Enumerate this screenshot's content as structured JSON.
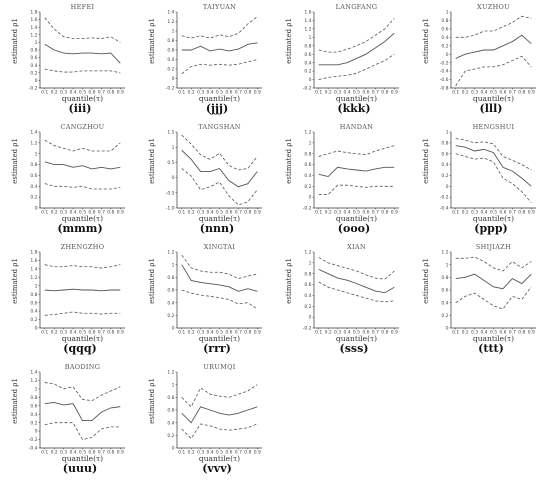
{
  "colors": {
    "axis": "#333333",
    "estimate": "#555555",
    "band": "#555555"
  },
  "chart_data": [
    {
      "type": "line",
      "title": "HEFEI",
      "label": "(iii)",
      "xlabel": "quantile(τ)",
      "ylabel": "estimated ρ1",
      "x": [
        0.1,
        0.2,
        0.3,
        0.4,
        0.5,
        0.6,
        0.7,
        0.8,
        0.9
      ],
      "ylim": [
        -0.2,
        1.8
      ],
      "yticks": [
        -0.2,
        0,
        0.2,
        0.4,
        0.6,
        0.8,
        1,
        1.2,
        1.4,
        1.6,
        1.8
      ],
      "ytick_labels": [
        "-0.2",
        "0",
        "0.2",
        "0.4",
        "0.6",
        "0.8",
        "1",
        "1.2",
        "1.4",
        "1.6",
        "1.8"
      ],
      "series": [
        {
          "values": [
            0.95,
            0.8,
            0.72,
            0.7,
            0.72,
            0.72,
            0.7,
            0.72,
            0.45
          ]
        },
        {
          "values": [
            1.65,
            1.35,
            1.15,
            1.1,
            1.1,
            1.12,
            1.1,
            1.15,
            1.0
          ]
        },
        {
          "values": [
            0.3,
            0.25,
            0.22,
            0.22,
            0.25,
            0.25,
            0.25,
            0.25,
            0.2
          ]
        }
      ]
    },
    {
      "type": "line",
      "title": "TAIYUAN",
      "label": "(jjj)",
      "xlabel": "quantile(τ)",
      "ylabel": "estimated ρ1",
      "x": [
        0.1,
        0.2,
        0.3,
        0.4,
        0.5,
        0.6,
        0.7,
        0.8,
        0.9
      ],
      "ylim": [
        -0.2,
        1.4
      ],
      "yticks": [
        -0.2,
        0,
        0.2,
        0.4,
        0.6,
        0.8,
        1,
        1.2,
        1.4
      ],
      "ytick_labels": [
        "-0.2",
        "0",
        "0.2",
        "0.4",
        "0.6",
        "0.8",
        "1",
        "1.2",
        "1.4"
      ],
      "series": [
        {
          "values": [
            0.6,
            0.6,
            0.68,
            0.58,
            0.62,
            0.58,
            0.62,
            0.72,
            0.75
          ]
        },
        {
          "values": [
            0.9,
            0.85,
            0.9,
            0.85,
            0.92,
            0.88,
            0.95,
            1.15,
            1.3
          ]
        },
        {
          "values": [
            0.1,
            0.25,
            0.3,
            0.28,
            0.3,
            0.28,
            0.3,
            0.35,
            0.4
          ]
        }
      ]
    },
    {
      "type": "line",
      "title": "LANGFANG",
      "label": "(kkk)",
      "xlabel": "quantile(τ)",
      "ylabel": "estimated ρ1",
      "x": [
        0.1,
        0.2,
        0.3,
        0.4,
        0.5,
        0.6,
        0.7,
        0.8,
        0.9
      ],
      "ylim": [
        -0.2,
        1.6
      ],
      "yticks": [
        -0.2,
        0,
        0.2,
        0.4,
        0.6,
        0.8,
        1,
        1.2,
        1.4,
        1.6
      ],
      "ytick_labels": [
        "-0.2",
        "0",
        "0.2",
        "0.4",
        "0.6",
        "0.8",
        "1",
        "1.2",
        "1.4",
        "1.6"
      ],
      "series": [
        {
          "values": [
            0.35,
            0.35,
            0.35,
            0.4,
            0.5,
            0.6,
            0.75,
            0.9,
            1.1
          ]
        },
        {
          "values": [
            0.7,
            0.65,
            0.65,
            0.72,
            0.8,
            0.9,
            1.05,
            1.2,
            1.45
          ]
        },
        {
          "values": [
            0.0,
            0.05,
            0.08,
            0.1,
            0.15,
            0.25,
            0.35,
            0.45,
            0.6
          ]
        }
      ]
    },
    {
      "type": "line",
      "title": "XUZHOU",
      "label": "(lll)",
      "xlabel": "quantile(τ)",
      "ylabel": "estimated ρ1",
      "x": [
        0.1,
        0.2,
        0.3,
        0.4,
        0.5,
        0.6,
        0.7,
        0.8,
        0.9
      ],
      "ylim": [
        -0.8,
        1
      ],
      "yticks": [
        -0.8,
        -0.6,
        -0.4,
        -0.2,
        0,
        0.2,
        0.4,
        0.6,
        0.8,
        1
      ],
      "ytick_labels": [
        "-0.8",
        "-0.6",
        "-0.4",
        "-0.2",
        "0",
        "0.2",
        "0.4",
        "0.6",
        "0.8",
        "1"
      ],
      "series": [
        {
          "values": [
            -0.1,
            0.0,
            0.05,
            0.1,
            0.1,
            0.2,
            0.3,
            0.45,
            0.25
          ]
        },
        {
          "values": [
            0.4,
            0.4,
            0.45,
            0.55,
            0.55,
            0.65,
            0.75,
            0.9,
            0.85
          ]
        },
        {
          "values": [
            -0.75,
            -0.4,
            -0.35,
            -0.3,
            -0.3,
            -0.25,
            -0.15,
            -0.05,
            -0.3
          ]
        }
      ]
    },
    {
      "type": "line",
      "title": "CANGZHOU",
      "label": "(mmm)",
      "xlabel": "quantile(τ)",
      "ylabel": "estimated ρ1",
      "x": [
        0.1,
        0.2,
        0.3,
        0.4,
        0.5,
        0.6,
        0.7,
        0.8,
        0.9
      ],
      "ylim": [
        0,
        1.4
      ],
      "yticks": [
        0,
        0.2,
        0.4,
        0.6,
        0.8,
        1,
        1.2,
        1.4
      ],
      "ytick_labels": [
        "0",
        "0.2",
        "0.4",
        "0.6",
        "0.8",
        "1",
        "1.2",
        "1.4"
      ],
      "series": [
        {
          "values": [
            0.85,
            0.8,
            0.8,
            0.75,
            0.78,
            0.72,
            0.75,
            0.72,
            0.75
          ]
        },
        {
          "values": [
            1.25,
            1.15,
            1.1,
            1.05,
            1.1,
            1.05,
            1.05,
            1.05,
            1.2
          ]
        },
        {
          "values": [
            0.45,
            0.4,
            0.4,
            0.38,
            0.4,
            0.35,
            0.35,
            0.35,
            0.38
          ]
        }
      ]
    },
    {
      "type": "line",
      "title": "TANGSHAN",
      "label": "(nnn)",
      "xlabel": "quantile(τ)",
      "ylabel": "estimated ρ1",
      "x": [
        0.1,
        0.2,
        0.3,
        0.4,
        0.5,
        0.6,
        0.7,
        0.8,
        0.9
      ],
      "ylim": [
        -1,
        1.5
      ],
      "yticks": [
        -1,
        -0.5,
        0,
        0.5,
        1,
        1.5
      ],
      "ytick_labels": [
        "-1.0",
        "-0.5",
        "0",
        "0.5",
        "1",
        "1.5"
      ],
      "series": [
        {
          "values": [
            0.9,
            0.6,
            0.2,
            0.2,
            0.3,
            -0.1,
            -0.3,
            -0.2,
            0.2
          ]
        },
        {
          "values": [
            1.4,
            1.1,
            0.75,
            0.6,
            0.8,
            0.4,
            0.25,
            0.3,
            0.7
          ]
        },
        {
          "values": [
            0.3,
            0.05,
            -0.4,
            -0.3,
            -0.15,
            -0.6,
            -0.9,
            -0.8,
            -0.4
          ]
        }
      ]
    },
    {
      "type": "line",
      "title": "HANDAN",
      "label": "(ooo)",
      "xlabel": "quantile(τ)",
      "ylabel": "estimated ρ1",
      "x": [
        0.1,
        0.2,
        0.3,
        0.4,
        0.5,
        0.6,
        0.7,
        0.8,
        0.9
      ],
      "ylim": [
        -0.2,
        1.2
      ],
      "yticks": [
        -0.2,
        0,
        0.2,
        0.4,
        0.6,
        0.8,
        1,
        1.2
      ],
      "ytick_labels": [
        "-0.2",
        "0",
        "0.2",
        "0.4",
        "0.6",
        "0.8",
        "1",
        "1.2"
      ],
      "series": [
        {
          "values": [
            0.42,
            0.38,
            0.55,
            0.52,
            0.5,
            0.48,
            0.52,
            0.55,
            0.55
          ]
        },
        {
          "values": [
            0.75,
            0.8,
            0.85,
            0.82,
            0.8,
            0.78,
            0.85,
            0.9,
            0.95
          ]
        },
        {
          "values": [
            0.05,
            0.05,
            0.22,
            0.22,
            0.2,
            0.18,
            0.2,
            0.2,
            0.2
          ]
        }
      ]
    },
    {
      "type": "line",
      "title": "HENGSHUI",
      "label": "(ppp)",
      "xlabel": "quantile(τ)",
      "ylabel": "estimated ρ1",
      "x": [
        0.1,
        0.2,
        0.3,
        0.4,
        0.5,
        0.6,
        0.7,
        0.8,
        0.9
      ],
      "ylim": [
        -0.4,
        1
      ],
      "yticks": [
        -0.4,
        -0.2,
        0,
        0.2,
        0.4,
        0.6,
        0.8,
        1
      ],
      "ytick_labels": [
        "-0.4",
        "-0.2",
        "0",
        "0.2",
        "0.4",
        "0.6",
        "0.8",
        "1"
      ],
      "series": [
        {
          "values": [
            0.75,
            0.72,
            0.65,
            0.68,
            0.62,
            0.35,
            0.28,
            0.15,
            0.0
          ]
        },
        {
          "values": [
            0.88,
            0.85,
            0.8,
            0.82,
            0.78,
            0.55,
            0.48,
            0.4,
            0.3
          ]
        },
        {
          "values": [
            0.6,
            0.55,
            0.5,
            0.52,
            0.45,
            0.15,
            0.05,
            -0.1,
            -0.3
          ]
        }
      ]
    },
    {
      "type": "line",
      "title": "ZHENGZHO",
      "label": "(qqq)",
      "xlabel": "quantile(τ)",
      "ylabel": "estimated ρ1",
      "x": [
        0.1,
        0.2,
        0.3,
        0.4,
        0.5,
        0.6,
        0.7,
        0.8,
        0.9
      ],
      "ylim": [
        0,
        1.8
      ],
      "yticks": [
        0,
        0.2,
        0.4,
        0.6,
        0.8,
        1,
        1.2,
        1.4,
        1.6,
        1.8
      ],
      "ytick_labels": [
        "0",
        "0.2",
        "0.4",
        "0.6",
        "0.8",
        "1",
        "1.2",
        "1.4",
        "1.6",
        "1.8"
      ],
      "series": [
        {
          "values": [
            0.9,
            0.88,
            0.9,
            0.92,
            0.9,
            0.9,
            0.88,
            0.9,
            0.9
          ]
        },
        {
          "values": [
            1.5,
            1.45,
            1.45,
            1.48,
            1.45,
            1.45,
            1.42,
            1.45,
            1.5
          ]
        },
        {
          "values": [
            0.3,
            0.32,
            0.35,
            0.38,
            0.35,
            0.35,
            0.33,
            0.35,
            0.35
          ]
        }
      ]
    },
    {
      "type": "line",
      "title": "XINGTAI",
      "label": "(rrr)",
      "xlabel": "quantile(τ)",
      "ylabel": "estimated ρ1",
      "x": [
        0.1,
        0.2,
        0.3,
        0.4,
        0.5,
        0.6,
        0.7,
        0.8,
        0.9
      ],
      "ylim": [
        0,
        1.2
      ],
      "yticks": [
        0,
        0.2,
        0.4,
        0.6,
        0.8,
        1,
        1.2
      ],
      "ytick_labels": [
        "0",
        "0.2",
        "0.4",
        "0.6",
        "0.8",
        "1",
        "1.2"
      ],
      "series": [
        {
          "values": [
            1.0,
            0.75,
            0.72,
            0.7,
            0.68,
            0.65,
            0.58,
            0.62,
            0.58
          ]
        },
        {
          "values": [
            1.15,
            0.95,
            0.9,
            0.88,
            0.88,
            0.85,
            0.78,
            0.82,
            0.85
          ]
        },
        {
          "values": [
            0.6,
            0.55,
            0.52,
            0.5,
            0.48,
            0.45,
            0.38,
            0.4,
            0.3
          ]
        }
      ]
    },
    {
      "type": "line",
      "title": "XIAN",
      "label": "(sss)",
      "xlabel": "quantile(τ)",
      "ylabel": "estimated ρ1",
      "x": [
        0.1,
        0.2,
        0.3,
        0.4,
        0.5,
        0.6,
        0.7,
        0.8,
        0.9
      ],
      "ylim": [
        -0.2,
        1.2
      ],
      "yticks": [
        -0.2,
        0,
        0.2,
        0.4,
        0.6,
        0.8,
        1,
        1.2
      ],
      "ytick_labels": [
        "-0.2",
        "0",
        "0.2",
        "0.4",
        "0.6",
        "0.8",
        "1",
        "1.2"
      ],
      "series": [
        {
          "values": [
            0.88,
            0.8,
            0.72,
            0.68,
            0.62,
            0.55,
            0.48,
            0.45,
            0.55
          ]
        },
        {
          "values": [
            1.1,
            1.0,
            0.95,
            0.9,
            0.85,
            0.78,
            0.72,
            0.7,
            0.85
          ]
        },
        {
          "values": [
            0.65,
            0.55,
            0.5,
            0.45,
            0.4,
            0.35,
            0.3,
            0.28,
            0.3
          ]
        }
      ]
    },
    {
      "type": "line",
      "title": "SHIJIAZH",
      "label": "(ttt)",
      "xlabel": "quantile(τ)",
      "ylabel": "estimated ρ1",
      "x": [
        0.1,
        0.2,
        0.3,
        0.4,
        0.5,
        0.6,
        0.7,
        0.8,
        0.9
      ],
      "ylim": [
        0,
        1.2
      ],
      "yticks": [
        0,
        0.2,
        0.4,
        0.6,
        0.8,
        1,
        1.2
      ],
      "ytick_labels": [
        "0",
        "0.2",
        "0.4",
        "0.6",
        "0.8",
        "1",
        "1.2"
      ],
      "series": [
        {
          "values": [
            0.78,
            0.8,
            0.85,
            0.75,
            0.65,
            0.62,
            0.78,
            0.7,
            0.85
          ]
        },
        {
          "values": [
            1.1,
            1.1,
            1.12,
            1.05,
            0.95,
            0.9,
            1.05,
            0.95,
            1.05
          ]
        },
        {
          "values": [
            0.4,
            0.5,
            0.55,
            0.45,
            0.35,
            0.3,
            0.5,
            0.45,
            0.65
          ]
        }
      ]
    },
    {
      "type": "line",
      "title": "BAODING",
      "label": "(uuu)",
      "xlabel": "quantile(τ)",
      "ylabel": "estimated ρ1",
      "x": [
        0.1,
        0.2,
        0.3,
        0.4,
        0.5,
        0.6,
        0.7,
        0.8,
        0.9
      ],
      "ylim": [
        -0.4,
        1.4
      ],
      "yticks": [
        -0.4,
        -0.2,
        0,
        0.2,
        0.4,
        0.6,
        0.8,
        1,
        1.2,
        1.4
      ],
      "ytick_labels": [
        "-0.4",
        "-0.2",
        "0",
        "0.2",
        "0.4",
        "0.6",
        "0.8",
        "1",
        "1.2",
        "1.4"
      ],
      "series": [
        {
          "values": [
            0.65,
            0.68,
            0.62,
            0.65,
            0.25,
            0.25,
            0.45,
            0.55,
            0.58
          ]
        },
        {
          "values": [
            1.15,
            1.12,
            1.0,
            1.05,
            0.75,
            0.72,
            0.85,
            0.95,
            1.05
          ]
        },
        {
          "values": [
            0.15,
            0.2,
            0.2,
            0.2,
            -0.2,
            -0.15,
            0.05,
            0.1,
            0.1
          ]
        }
      ]
    },
    {
      "type": "line",
      "title": "URUMQI",
      "label": "(vvv)",
      "xlabel": "quantile(τ)",
      "ylabel": "estimated ρ1",
      "x": [
        0.1,
        0.2,
        0.3,
        0.4,
        0.5,
        0.6,
        0.7,
        0.8,
        0.9
      ],
      "ylim": [
        0,
        1.2
      ],
      "yticks": [
        0,
        0.2,
        0.4,
        0.6,
        0.8,
        1,
        1.2
      ],
      "ytick_labels": [
        "0",
        "0.2",
        "0.4",
        "0.6",
        "0.8",
        "1",
        "1.2"
      ],
      "series": [
        {
          "values": [
            0.55,
            0.4,
            0.65,
            0.6,
            0.55,
            0.52,
            0.55,
            0.6,
            0.65
          ]
        },
        {
          "values": [
            0.8,
            0.65,
            0.95,
            0.85,
            0.82,
            0.8,
            0.85,
            0.9,
            1.0
          ]
        },
        {
          "values": [
            0.3,
            0.15,
            0.38,
            0.35,
            0.3,
            0.28,
            0.3,
            0.32,
            0.38
          ]
        }
      ]
    }
  ]
}
